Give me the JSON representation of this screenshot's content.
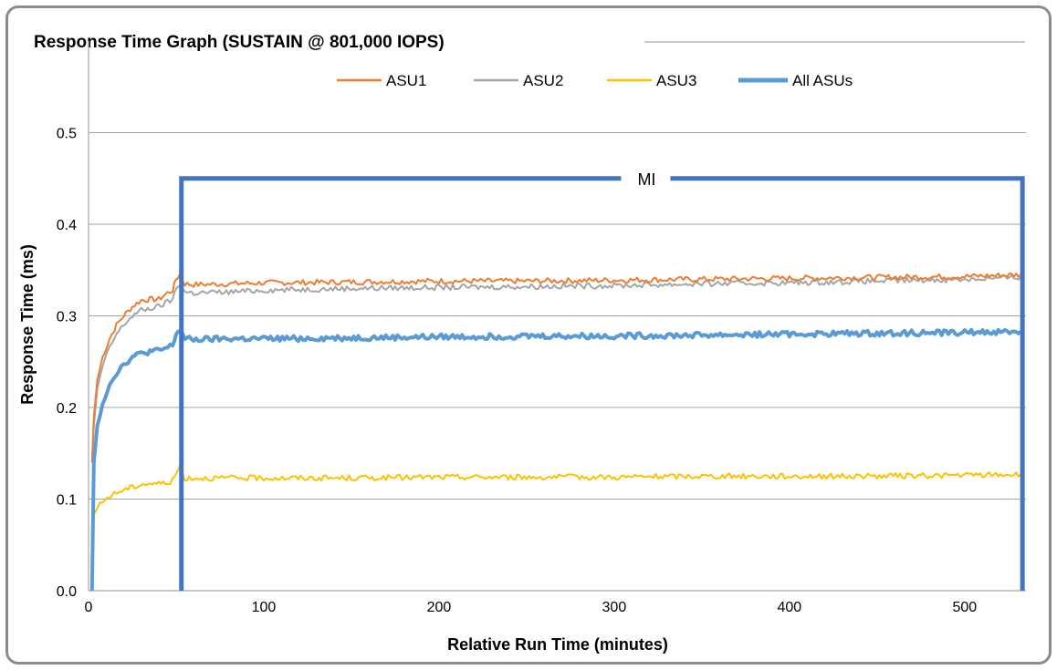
{
  "colors": {
    "asu1": "#ED7D31",
    "asu2": "#A5A5A5",
    "asu3": "#FFC000",
    "all": "#5B9BD5",
    "mi": "#4472C4",
    "grid": "#a6a6a6",
    "frame": "#8c8c8c"
  },
  "chart_data": {
    "type": "line",
    "title": "Response Time Graph (SUSTAIN @ 801,000 IOPS)",
    "xlabel": "Relative Run Time (minutes)",
    "ylabel": "Response Time (ms)",
    "xlim": [
      0,
      535
    ],
    "ylim": [
      0,
      0.6
    ],
    "xticks": [
      "0",
      "100",
      "200",
      "300",
      "400",
      "500"
    ],
    "xtick_values": [
      0,
      100,
      200,
      300,
      400,
      500
    ],
    "yticks": [
      "0.0",
      "0.1",
      "0.2",
      "0.3",
      "0.4",
      "0.5"
    ],
    "ytick_values": [
      0,
      0.1,
      0.2,
      0.3,
      0.4,
      0.5
    ],
    "grid": "horizontal",
    "legend_position": "top",
    "series": [
      {
        "name": "ASU1",
        "color": "#ED7D31",
        "x": [
          2,
          3,
          5,
          8,
          12,
          16,
          20,
          25,
          30,
          35,
          40,
          45,
          48,
          50,
          52,
          55,
          60,
          80,
          100,
          150,
          200,
          250,
          300,
          350,
          400,
          450,
          500,
          532
        ],
        "y": [
          0.14,
          0.19,
          0.23,
          0.255,
          0.275,
          0.29,
          0.3,
          0.31,
          0.317,
          0.318,
          0.318,
          0.325,
          0.328,
          0.34,
          0.345,
          0.335,
          0.334,
          0.335,
          0.336,
          0.337,
          0.338,
          0.338,
          0.339,
          0.34,
          0.341,
          0.342,
          0.343,
          0.345
        ]
      },
      {
        "name": "ASU2",
        "color": "#A5A5A5",
        "x": [
          2,
          3,
          5,
          8,
          12,
          16,
          20,
          25,
          30,
          35,
          40,
          45,
          48,
          50,
          52,
          55,
          60,
          80,
          100,
          150,
          200,
          250,
          300,
          350,
          400,
          450,
          500,
          532
        ],
        "y": [
          0.14,
          0.18,
          0.22,
          0.245,
          0.265,
          0.28,
          0.29,
          0.3,
          0.306,
          0.308,
          0.31,
          0.315,
          0.318,
          0.33,
          0.335,
          0.326,
          0.325,
          0.326,
          0.328,
          0.33,
          0.331,
          0.332,
          0.333,
          0.335,
          0.336,
          0.338,
          0.34,
          0.342
        ]
      },
      {
        "name": "ASU3",
        "color": "#FFC000",
        "x": [
          2,
          3,
          5,
          8,
          12,
          16,
          20,
          25,
          30,
          35,
          40,
          45,
          48,
          50,
          52,
          55,
          60,
          80,
          100,
          150,
          200,
          250,
          300,
          350,
          400,
          450,
          500,
          532
        ],
        "y": [
          0.085,
          0.083,
          0.09,
          0.097,
          0.103,
          0.107,
          0.11,
          0.113,
          0.116,
          0.117,
          0.117,
          0.118,
          0.12,
          0.128,
          0.135,
          0.123,
          0.123,
          0.123,
          0.123,
          0.123,
          0.124,
          0.124,
          0.124,
          0.125,
          0.125,
          0.125,
          0.126,
          0.127
        ]
      },
      {
        "name": "All ASUs",
        "color": "#5B9BD5",
        "x": [
          2,
          3,
          5,
          8,
          12,
          16,
          20,
          25,
          30,
          35,
          40,
          45,
          48,
          50,
          52,
          55,
          60,
          80,
          100,
          150,
          200,
          250,
          300,
          350,
          400,
          450,
          500,
          532
        ],
        "y": [
          0.0,
          0.14,
          0.18,
          0.205,
          0.225,
          0.238,
          0.247,
          0.255,
          0.259,
          0.261,
          0.262,
          0.265,
          0.268,
          0.28,
          0.285,
          0.275,
          0.274,
          0.275,
          0.275,
          0.276,
          0.277,
          0.278,
          0.278,
          0.279,
          0.28,
          0.281,
          0.282,
          0.283
        ]
      }
    ],
    "annotations": [
      {
        "label": "MI",
        "x_start": 53,
        "x_end": 533,
        "y": 0.45
      }
    ]
  }
}
